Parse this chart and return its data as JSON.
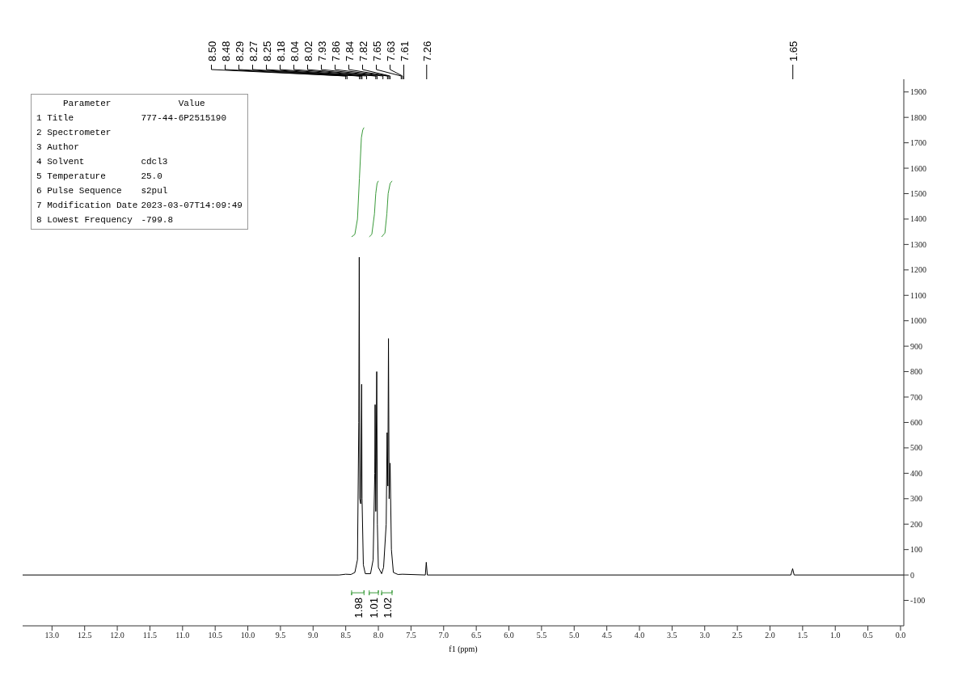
{
  "chart_data": {
    "type": "line",
    "xlabel": "f1 (ppm)",
    "xlim": [
      13.45,
      -0.05
    ],
    "ylim": [
      -200,
      1950
    ],
    "xticks": [
      {
        "value": 13,
        "label": "13.0"
      },
      {
        "value": 12.5,
        "label": "12.5"
      },
      {
        "value": 12,
        "label": "12.0"
      },
      {
        "value": 11.5,
        "label": "11.5"
      },
      {
        "value": 11,
        "label": "11.0"
      },
      {
        "value": 10.5,
        "label": "10.5"
      },
      {
        "value": 10,
        "label": "10.0"
      },
      {
        "value": 9.5,
        "label": "9.5"
      },
      {
        "value": 9,
        "label": "9.0"
      },
      {
        "value": 8.5,
        "label": "8.5"
      },
      {
        "value": 8,
        "label": "8.0"
      },
      {
        "value": 7.5,
        "label": "7.5"
      },
      {
        "value": 7,
        "label": "7.0"
      },
      {
        "value": 6.5,
        "label": "6.5"
      },
      {
        "value": 6,
        "label": "6.0"
      },
      {
        "value": 5.5,
        "label": "5.5"
      },
      {
        "value": 5,
        "label": "5.0"
      },
      {
        "value": 4.5,
        "label": "4.5"
      },
      {
        "value": 4,
        "label": "4.0"
      },
      {
        "value": 3.5,
        "label": "3.5"
      },
      {
        "value": 3,
        "label": "3.0"
      },
      {
        "value": 2.5,
        "label": "2.5"
      },
      {
        "value": 2,
        "label": "2.0"
      },
      {
        "value": 1.5,
        "label": "1.5"
      },
      {
        "value": 1,
        "label": "1.0"
      },
      {
        "value": 0.5,
        "label": "0.5"
      },
      {
        "value": 0,
        "label": "0.0"
      }
    ],
    "yticks": [
      -100,
      0,
      100,
      200,
      300,
      400,
      500,
      600,
      700,
      800,
      900,
      1000,
      1100,
      1200,
      1300,
      1400,
      1500,
      1600,
      1700,
      1800,
      1900
    ],
    "grid": false,
    "series": [
      {
        "color": "#000000",
        "x": [
          13.45,
          8.6,
          8.5,
          8.42,
          8.36,
          8.32,
          8.3,
          8.293,
          8.285,
          8.27,
          8.256,
          8.25,
          8.23,
          8.2,
          8.12,
          8.08,
          8.055,
          8.05,
          8.04,
          8.025,
          8.015,
          8.0,
          7.95,
          7.92,
          7.88,
          7.866,
          7.855,
          7.845,
          7.835,
          7.82,
          7.8,
          7.77,
          7.7,
          7.63,
          7.28,
          7.266,
          7.25,
          1.68,
          1.653,
          1.63,
          -0.05
        ],
        "values": [
          0,
          0,
          3,
          2,
          10,
          60,
          600,
          1250,
          300,
          280,
          750,
          300,
          40,
          5,
          5,
          60,
          400,
          670,
          250,
          800,
          200,
          30,
          5,
          30,
          200,
          560,
          350,
          930,
          300,
          440,
          100,
          10,
          2,
          3,
          0,
          50,
          0,
          0,
          25,
          0,
          0
        ]
      },
      {
        "color": "#3a9a3a",
        "x": [
          8.41,
          8.36,
          8.32,
          8.29,
          8.26,
          8.24,
          8.22
        ],
        "values": [
          1330,
          1340,
          1400,
          1560,
          1720,
          1750,
          1760
        ]
      },
      {
        "color": "#3a9a3a",
        "x": [
          8.14,
          8.1,
          8.06,
          8.04,
          8.02,
          8.0
        ],
        "values": [
          1330,
          1340,
          1420,
          1500,
          1540,
          1550
        ]
      },
      {
        "color": "#3a9a3a",
        "x": [
          7.95,
          7.9,
          7.87,
          7.85,
          7.82,
          7.79
        ],
        "values": [
          1330,
          1345,
          1420,
          1500,
          1540,
          1550
        ]
      }
    ],
    "annotations": [
      {
        "text": "8.50",
        "x": 8.5
      },
      {
        "text": "8.48",
        "x": 8.48
      },
      {
        "text": "8.29",
        "x": 8.29
      },
      {
        "text": "8.27",
        "x": 8.27
      },
      {
        "text": "8.25",
        "x": 8.25
      },
      {
        "text": "8.18",
        "x": 8.18
      },
      {
        "text": "8.04",
        "x": 8.04
      },
      {
        "text": "8.02",
        "x": 8.02
      },
      {
        "text": "7.93",
        "x": 7.93
      },
      {
        "text": "7.86",
        "x": 7.86
      },
      {
        "text": "7.84",
        "x": 7.84
      },
      {
        "text": "7.82",
        "x": 7.82
      },
      {
        "text": "7.65",
        "x": 7.65
      },
      {
        "text": "7.63",
        "x": 7.63
      },
      {
        "text": "7.61",
        "x": 7.61
      },
      {
        "text": "7.26",
        "x": 7.26
      },
      {
        "text": "1.65",
        "x": 1.65
      },
      "1.98",
      "1.01",
      "1.02",
      "Parameter\tValue",
      "1 Title\t777-44-6P2515190",
      "2 Spectrometer",
      "3 Author",
      "4 Solvent\tcdcl3",
      "5 Temperature\t25.0",
      "6 Pulse Sequence\ts2pul",
      "7 Modification Date\t2023-03-07T14:09:49",
      "8 Lowest Frequency\t-799.8"
    ]
  }
}
